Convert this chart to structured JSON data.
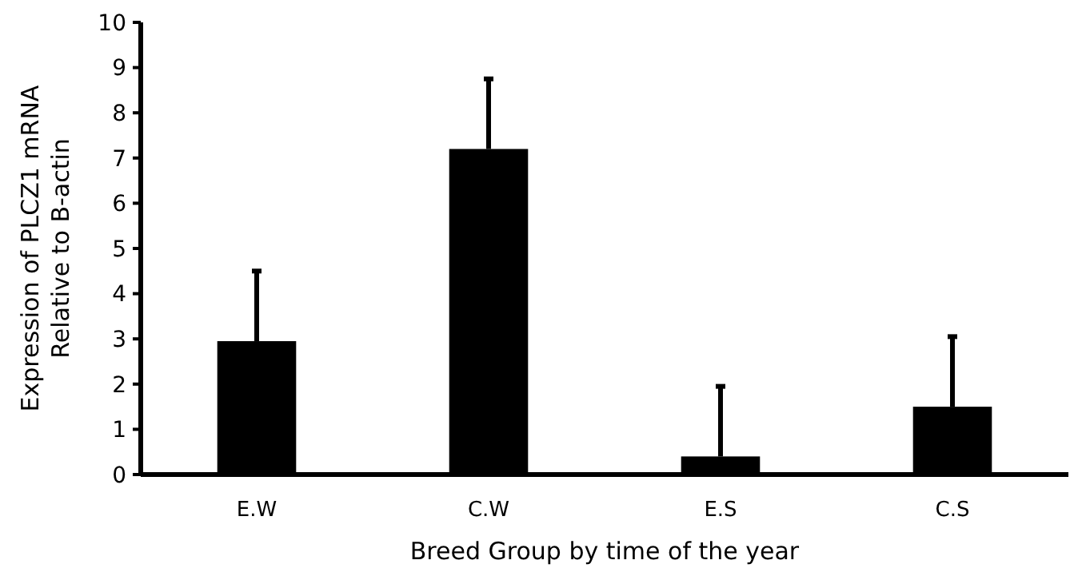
{
  "chart_data": {
    "type": "bar",
    "xlabel": "Breed Group by time of the year",
    "ylabel": "Expression of PLCZ1 mRNA\nRelative to B-actin",
    "categories": [
      "E.W",
      "C.W",
      "E.S",
      "C.S"
    ],
    "values": [
      2.95,
      7.2,
      0.4,
      1.5
    ],
    "errors": [
      [
        2.95,
        4.5
      ],
      [
        7.2,
        8.75
      ],
      [
        0.4,
        1.95
      ],
      [
        1.5,
        3.05
      ]
    ],
    "color": "#000000",
    "ylim": [
      0,
      10
    ],
    "yticks": [
      0,
      1,
      2,
      3,
      4,
      5,
      6,
      7,
      8,
      9,
      10
    ],
    "grid": false
  }
}
